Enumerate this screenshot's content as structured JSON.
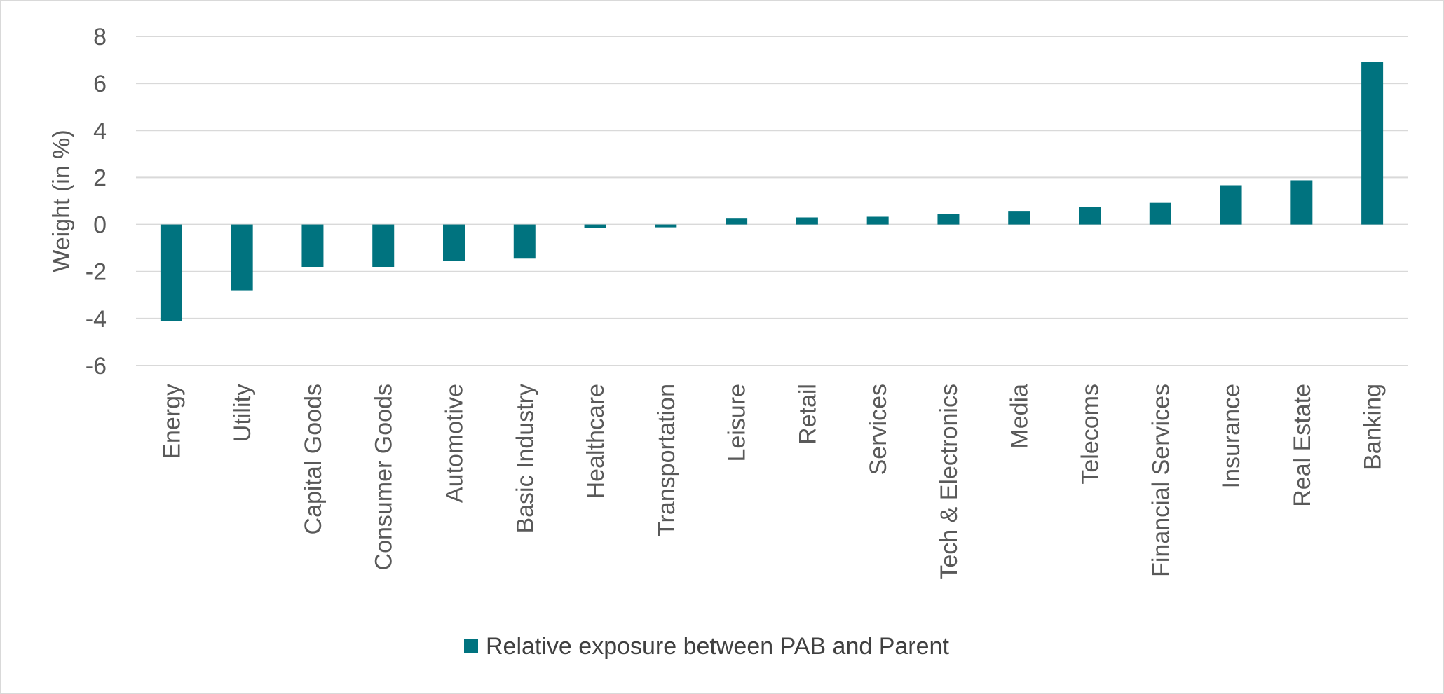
{
  "chart_data": {
    "type": "bar",
    "title": "",
    "xlabel": "",
    "ylabel": "Weight (in %)",
    "ylim": [
      -6,
      8
    ],
    "yticks": [
      8,
      6,
      4,
      2,
      0,
      -2,
      -4,
      -6
    ],
    "grid": true,
    "legend_position": "bottom",
    "categories": [
      "Energy",
      "Utility",
      "Capital Goods",
      "Consumer Goods",
      "Automotive",
      "Basic Industry",
      "Healthcare",
      "Transportation",
      "Leisure",
      "Retail",
      "Services",
      "Tech & Electronics",
      "Media",
      "Telecoms",
      "Financial Services",
      "Insurance",
      "Real Estate",
      "Banking"
    ],
    "series": [
      {
        "name": "Relative exposure between PAB and Parent",
        "color": "#00737f",
        "values": [
          -4.1,
          -2.8,
          -1.8,
          -1.8,
          -1.55,
          -1.45,
          -0.15,
          -0.12,
          0.25,
          0.3,
          0.33,
          0.45,
          0.55,
          0.75,
          0.92,
          1.67,
          1.88,
          6.9
        ]
      }
    ]
  }
}
